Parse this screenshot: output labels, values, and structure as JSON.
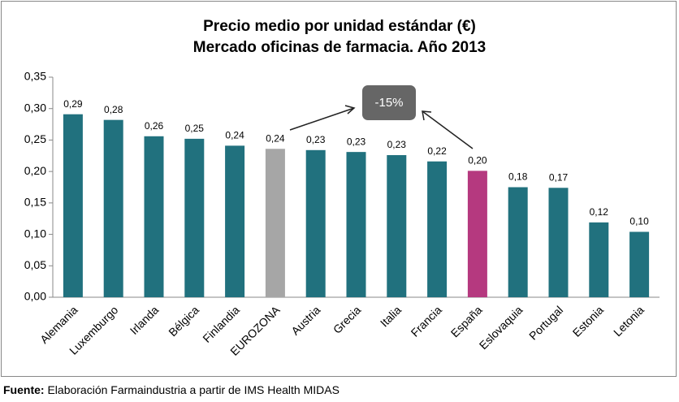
{
  "chart_data": {
    "type": "bar",
    "title": [
      "Precio medio por unidad estándar (€)",
      "Mercado oficinas de farmacia. Año 2013"
    ],
    "categories": [
      "Alemania",
      "Luxemburgo",
      "Irlanda",
      "Bélgica",
      "Finlandia",
      "EUROZONA",
      "Austria",
      "Grecia",
      "Italia",
      "Francia",
      "España",
      "Eslovaquia",
      "Portugal",
      "Estonia",
      "Letonia"
    ],
    "values": [
      0.291,
      0.282,
      0.256,
      0.252,
      0.241,
      0.236,
      0.234,
      0.231,
      0.226,
      0.216,
      0.201,
      0.175,
      0.174,
      0.119,
      0.104
    ],
    "value_labels": [
      "0,29",
      "0,28",
      "0,26",
      "0,25",
      "0,24",
      "0,24",
      "0,23",
      "0,23",
      "0,23",
      "0,22",
      "0,20",
      "0,18",
      "0,17",
      "0,12",
      "0,10"
    ],
    "colors": [
      "#21717e",
      "#21717e",
      "#21717e",
      "#21717e",
      "#21717e",
      "#a6a6a6",
      "#21717e",
      "#21717e",
      "#21717e",
      "#21717e",
      "#b5397f",
      "#21717e",
      "#21717e",
      "#21717e",
      "#21717e"
    ],
    "ylim": [
      0,
      0.35
    ],
    "yticks": [
      {
        "value": 0,
        "label": "0,00"
      },
      {
        "value": 0.05,
        "label": "0,05"
      },
      {
        "value": 0.1,
        "label": "0,10"
      },
      {
        "value": 0.15,
        "label": "0,15"
      },
      {
        "value": 0.2,
        "label": "0,20"
      },
      {
        "value": 0.25,
        "label": "0,25"
      },
      {
        "value": 0.3,
        "label": "0,30"
      },
      {
        "value": 0.35,
        "label": "0,35"
      }
    ],
    "grid": false,
    "annotation": "-15%",
    "source_label": "Fuente:",
    "source": "Elaboración Farmaindustria a partir de IMS Health MIDAS"
  }
}
